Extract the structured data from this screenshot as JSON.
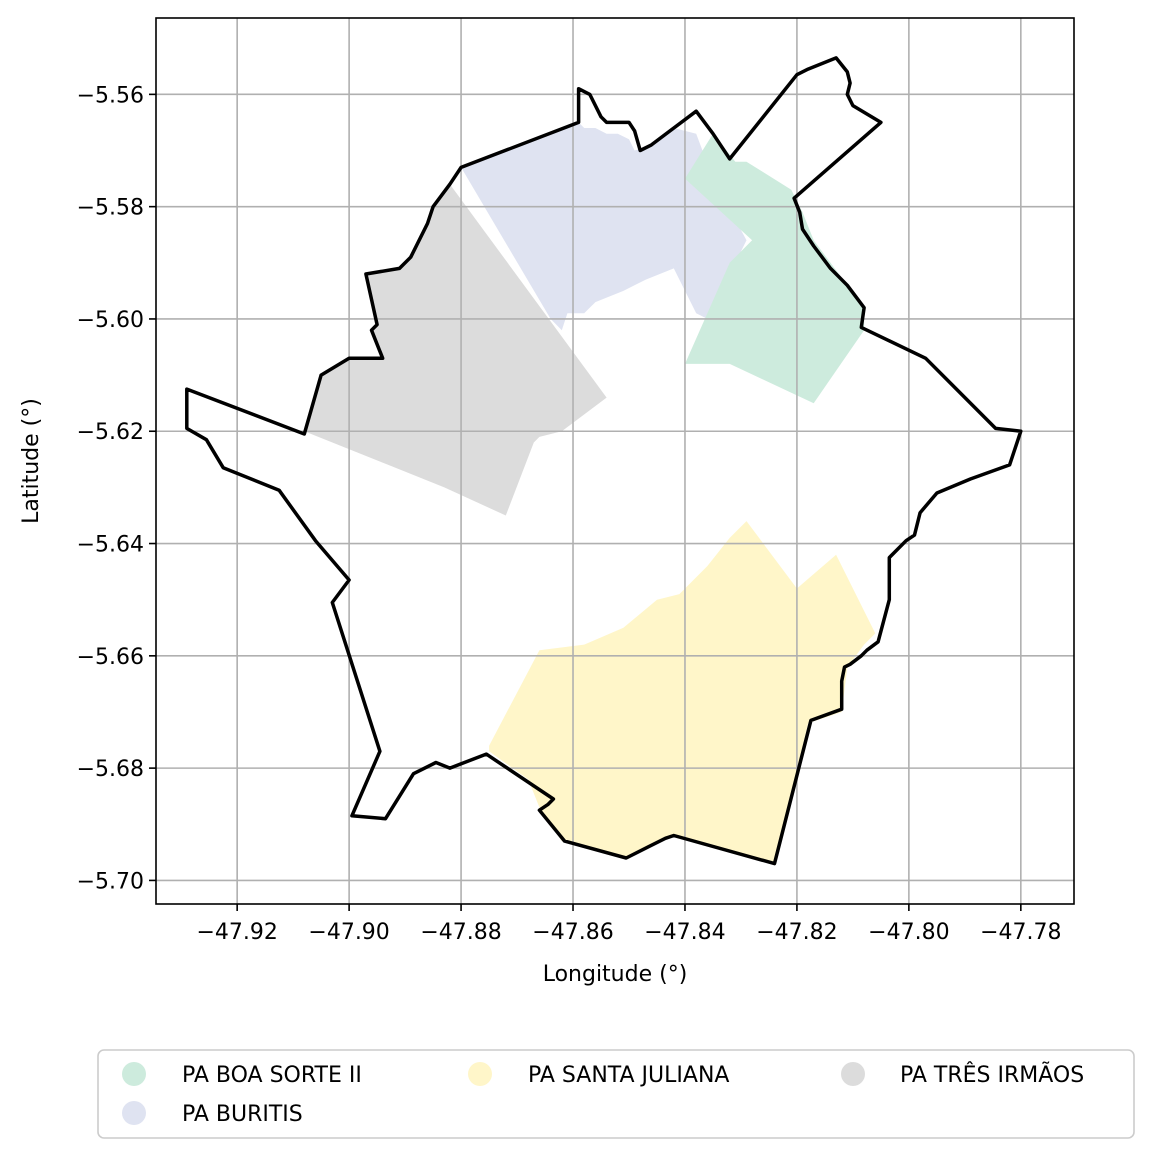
{
  "chart_data": {
    "type": "map",
    "xlabel": "Longitude (°)",
    "ylabel": "Latitude (°)",
    "xlim": [
      -47.9345,
      -47.7705
    ],
    "ylim": [
      -5.7042,
      -5.5464
    ],
    "grid": true,
    "x_ticks": [
      {
        "value": -47.92,
        "label": "−47.92"
      },
      {
        "value": -47.9,
        "label": "−47.90"
      },
      {
        "value": -47.88,
        "label": "−47.88"
      },
      {
        "value": -47.86,
        "label": "−47.86"
      },
      {
        "value": -47.84,
        "label": "−47.84"
      },
      {
        "value": -47.82,
        "label": "−47.82"
      },
      {
        "value": -47.8,
        "label": "−47.80"
      },
      {
        "value": -47.78,
        "label": "−47.78"
      }
    ],
    "y_ticks": [
      {
        "value": -5.56,
        "label": "−5.56"
      },
      {
        "value": -5.58,
        "label": "−5.58"
      },
      {
        "value": -5.6,
        "label": "−5.60"
      },
      {
        "value": -5.62,
        "label": "−5.62"
      },
      {
        "value": -5.64,
        "label": "−5.64"
      },
      {
        "value": -5.66,
        "label": "−5.66"
      },
      {
        "value": -5.68,
        "label": "−5.68"
      },
      {
        "value": -5.7,
        "label": "−5.70"
      }
    ],
    "legend_placement": "bottom-center",
    "regions": [
      {
        "name": "PA TRÊS IRMÃOS",
        "color": "#dcdcdc",
        "coords": [
          [
            -47.882,
            -5.576
          ],
          [
            -47.854,
            -5.614
          ],
          [
            -47.862,
            -5.62
          ],
          [
            -47.866,
            -5.621
          ],
          [
            -47.867,
            -5.622
          ],
          [
            -47.872,
            -5.635
          ],
          [
            -47.883,
            -5.63
          ],
          [
            -47.893,
            -5.626
          ],
          [
            -47.908,
            -5.62
          ],
          [
            -47.905,
            -5.61
          ],
          [
            -47.9,
            -5.607
          ],
          [
            -47.894,
            -5.607
          ],
          [
            -47.896,
            -5.602
          ],
          [
            -47.895,
            -5.601
          ],
          [
            -47.897,
            -5.592
          ],
          [
            -47.891,
            -5.591
          ],
          [
            -47.889,
            -5.589
          ],
          [
            -47.886,
            -5.583
          ],
          [
            -47.885,
            -5.58
          ]
        ]
      },
      {
        "name": "PA BURITIS",
        "color": "#dfe3f1",
        "coords": [
          [
            -47.88,
            -5.573
          ],
          [
            -47.859,
            -5.565
          ],
          [
            -47.858,
            -5.566
          ],
          [
            -47.856,
            -5.566
          ],
          [
            -47.854,
            -5.567
          ],
          [
            -47.852,
            -5.567
          ],
          [
            -47.85,
            -5.568
          ],
          [
            -47.849,
            -5.57
          ],
          [
            -47.846,
            -5.569
          ],
          [
            -47.842,
            -5.566
          ],
          [
            -47.838,
            -5.567
          ],
          [
            -47.835,
            -5.575
          ],
          [
            -47.829,
            -5.586
          ],
          [
            -47.836,
            -5.6
          ],
          [
            -47.838,
            -5.599
          ],
          [
            -47.841,
            -5.593
          ],
          [
            -47.842,
            -5.591
          ],
          [
            -47.847,
            -5.593
          ],
          [
            -47.851,
            -5.595
          ],
          [
            -47.856,
            -5.597
          ],
          [
            -47.858,
            -5.599
          ],
          [
            -47.861,
            -5.599
          ],
          [
            -47.862,
            -5.602
          ],
          [
            -47.864,
            -5.6
          ]
        ]
      },
      {
        "name": "PA BOA SORTE II",
        "color": "#cdebdd",
        "coords": [
          [
            -47.835,
            -5.567
          ],
          [
            -47.831,
            -5.572
          ],
          [
            -47.829,
            -5.572
          ],
          [
            -47.821,
            -5.577
          ],
          [
            -47.819,
            -5.581
          ],
          [
            -47.817,
            -5.586
          ],
          [
            -47.811,
            -5.594
          ],
          [
            -47.808,
            -5.598
          ],
          [
            -47.808,
            -5.602
          ],
          [
            -47.817,
            -5.615
          ],
          [
            -47.832,
            -5.608
          ],
          [
            -47.84,
            -5.608
          ],
          [
            -47.832,
            -5.59
          ],
          [
            -47.828,
            -5.586
          ],
          [
            -47.84,
            -5.575
          ]
        ]
      },
      {
        "name": "PA SANTA JULIANA",
        "color": "#fff6c9",
        "coords": [
          [
            -47.829,
            -5.636
          ],
          [
            -47.82,
            -5.648
          ],
          [
            -47.813,
            -5.642
          ],
          [
            -47.806,
            -5.656
          ],
          [
            -47.808,
            -5.658
          ],
          [
            -47.811,
            -5.662
          ],
          [
            -47.812,
            -5.67
          ],
          [
            -47.818,
            -5.672
          ],
          [
            -47.824,
            -5.697
          ],
          [
            -47.843,
            -5.692
          ],
          [
            -47.85,
            -5.696
          ],
          [
            -47.862,
            -5.693
          ],
          [
            -47.866,
            -5.687
          ],
          [
            -47.868,
            -5.682
          ],
          [
            -47.875,
            -5.677
          ],
          [
            -47.875,
            -5.676
          ],
          [
            -47.866,
            -5.659
          ],
          [
            -47.858,
            -5.658
          ],
          [
            -47.851,
            -5.655
          ],
          [
            -47.845,
            -5.65
          ],
          [
            -47.841,
            -5.649
          ],
          [
            -47.836,
            -5.644
          ],
          [
            -47.832,
            -5.639
          ]
        ]
      }
    ],
    "boundary": {
      "color": "#000000",
      "coords": [
        [
          -47.929,
          -5.6125
        ],
        [
          -47.908,
          -5.6205
        ],
        [
          -47.905,
          -5.61
        ],
        [
          -47.9,
          -5.607
        ],
        [
          -47.894,
          -5.607
        ],
        [
          -47.896,
          -5.602
        ],
        [
          -47.895,
          -5.601
        ],
        [
          -47.897,
          -5.592
        ],
        [
          -47.891,
          -5.591
        ],
        [
          -47.889,
          -5.589
        ],
        [
          -47.886,
          -5.583
        ],
        [
          -47.885,
          -5.58
        ],
        [
          -47.882,
          -5.576
        ],
        [
          -47.88,
          -5.573
        ],
        [
          -47.859,
          -5.565
        ],
        [
          -47.859,
          -5.559
        ],
        [
          -47.857,
          -5.56
        ],
        [
          -47.855,
          -5.564
        ],
        [
          -47.854,
          -5.565
        ],
        [
          -47.852,
          -5.565
        ],
        [
          -47.85,
          -5.565
        ],
        [
          -47.849,
          -5.5665
        ],
        [
          -47.848,
          -5.57
        ],
        [
          -47.846,
          -5.569
        ],
        [
          -47.842,
          -5.566
        ],
        [
          -47.838,
          -5.563
        ],
        [
          -47.835,
          -5.567
        ],
        [
          -47.832,
          -5.5715
        ],
        [
          -47.82,
          -5.5565
        ],
        [
          -47.818,
          -5.5555
        ],
        [
          -47.813,
          -5.5535
        ],
        [
          -47.811,
          -5.556
        ],
        [
          -47.8105,
          -5.558
        ],
        [
          -47.811,
          -5.56
        ],
        [
          -47.81,
          -5.562
        ],
        [
          -47.805,
          -5.565
        ],
        [
          -47.8205,
          -5.5785
        ],
        [
          -47.8195,
          -5.581
        ],
        [
          -47.819,
          -5.584
        ],
        [
          -47.817,
          -5.587
        ],
        [
          -47.814,
          -5.591
        ],
        [
          -47.811,
          -5.594
        ],
        [
          -47.808,
          -5.598
        ],
        [
          -47.8085,
          -5.6015
        ],
        [
          -47.797,
          -5.607
        ],
        [
          -47.7845,
          -5.6195
        ],
        [
          -47.78,
          -5.62
        ],
        [
          -47.782,
          -5.626
        ],
        [
          -47.789,
          -5.6285
        ],
        [
          -47.795,
          -5.631
        ],
        [
          -47.798,
          -5.6345
        ],
        [
          -47.799,
          -5.6385
        ],
        [
          -47.8005,
          -5.6395
        ],
        [
          -47.8035,
          -5.6425
        ],
        [
          -47.8035,
          -5.65
        ],
        [
          -47.8055,
          -5.6575
        ],
        [
          -47.8075,
          -5.659
        ],
        [
          -47.8085,
          -5.66
        ],
        [
          -47.8105,
          -5.6615
        ],
        [
          -47.8115,
          -5.662
        ],
        [
          -47.812,
          -5.6645
        ],
        [
          -47.812,
          -5.6695
        ],
        [
          -47.8175,
          -5.6715
        ],
        [
          -47.824,
          -5.697
        ],
        [
          -47.842,
          -5.692
        ],
        [
          -47.8435,
          -5.6925
        ],
        [
          -47.8465,
          -5.694
        ],
        [
          -47.8505,
          -5.696
        ],
        [
          -47.8615,
          -5.693
        ],
        [
          -47.866,
          -5.6875
        ],
        [
          -47.8645,
          -5.6865
        ],
        [
          -47.8635,
          -5.6855
        ],
        [
          -47.8755,
          -5.6775
        ],
        [
          -47.882,
          -5.68
        ],
        [
          -47.8845,
          -5.679
        ],
        [
          -47.8885,
          -5.681
        ],
        [
          -47.8935,
          -5.689
        ],
        [
          -47.8995,
          -5.6885
        ],
        [
          -47.8945,
          -5.677
        ],
        [
          -47.903,
          -5.6505
        ],
        [
          -47.9,
          -5.6465
        ],
        [
          -47.906,
          -5.6395
        ],
        [
          -47.9125,
          -5.6305
        ],
        [
          -47.9225,
          -5.6265
        ],
        [
          -47.9255,
          -5.6215
        ],
        [
          -47.929,
          -5.6195
        ],
        [
          -47.929,
          -5.6125
        ]
      ]
    }
  },
  "legend": {
    "items": [
      {
        "label": "PA BOA SORTE II",
        "color": "#cdebdd"
      },
      {
        "label": "PA SANTA JULIANA",
        "color": "#fff6c9"
      },
      {
        "label": "PA TRÊS IRMÃOS",
        "color": "#dcdcdc"
      },
      {
        "label": "PA BURITIS",
        "color": "#dfe3f1"
      }
    ]
  }
}
